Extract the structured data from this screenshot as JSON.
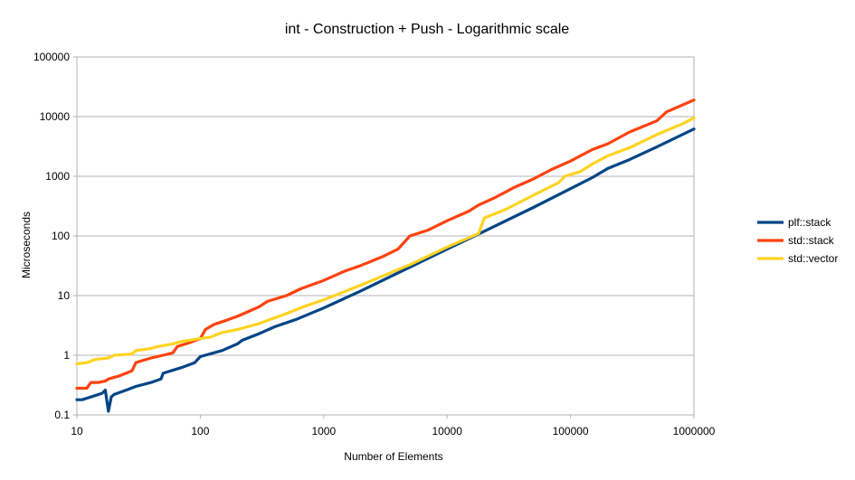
{
  "chart_data": {
    "type": "line",
    "title": "int - Construction + Push - Logarithmic scale",
    "xlabel": "Number of Elements",
    "ylabel": "Microseconds",
    "xscale": "log",
    "yscale": "log",
    "xlim": [
      10,
      1000000
    ],
    "ylim": [
      0.1,
      100000
    ],
    "x_ticks": [
      "10",
      "100",
      "1000",
      "10000",
      "100000",
      "1000000"
    ],
    "y_ticks": [
      "0.1",
      "1",
      "10",
      "100",
      "1000",
      "10000",
      "100000"
    ],
    "grid": "horizontal",
    "legend_position": "right",
    "series": [
      {
        "name": "plf::stack",
        "color": "#004586",
        "points": [
          [
            10,
            0.18
          ],
          [
            11,
            0.18
          ],
          [
            12,
            0.19
          ],
          [
            14,
            0.21
          ],
          [
            16,
            0.23
          ],
          [
            17,
            0.26
          ],
          [
            18,
            0.115
          ],
          [
            19,
            0.2
          ],
          [
            20,
            0.22
          ],
          [
            25,
            0.26
          ],
          [
            30,
            0.3
          ],
          [
            40,
            0.35
          ],
          [
            48,
            0.4
          ],
          [
            50,
            0.5
          ],
          [
            70,
            0.62
          ],
          [
            90,
            0.75
          ],
          [
            100,
            0.95
          ],
          [
            150,
            1.2
          ],
          [
            200,
            1.55
          ],
          [
            220,
            1.8
          ],
          [
            300,
            2.3
          ],
          [
            400,
            3.0
          ],
          [
            600,
            4.0
          ],
          [
            1000,
            6.2
          ],
          [
            2000,
            12
          ],
          [
            5000,
            30
          ],
          [
            10000,
            60
          ],
          [
            20000,
            120
          ],
          [
            50000,
            300
          ],
          [
            100000,
            620
          ],
          [
            150000,
            950
          ],
          [
            200000,
            1350
          ],
          [
            300000,
            1900
          ],
          [
            500000,
            3100
          ],
          [
            1000000,
            6200
          ]
        ]
      },
      {
        "name": "std::stack",
        "color": "#ff420e",
        "points": [
          [
            10,
            0.28
          ],
          [
            12,
            0.28
          ],
          [
            13,
            0.35
          ],
          [
            15,
            0.35
          ],
          [
            17,
            0.37
          ],
          [
            18,
            0.4
          ],
          [
            22,
            0.45
          ],
          [
            25,
            0.5
          ],
          [
            28,
            0.55
          ],
          [
            30,
            0.75
          ],
          [
            33,
            0.8
          ],
          [
            40,
            0.9
          ],
          [
            50,
            1.0
          ],
          [
            60,
            1.1
          ],
          [
            65,
            1.4
          ],
          [
            80,
            1.6
          ],
          [
            100,
            1.9
          ],
          [
            110,
            2.7
          ],
          [
            130,
            3.3
          ],
          [
            160,
            3.8
          ],
          [
            200,
            4.5
          ],
          [
            250,
            5.5
          ],
          [
            300,
            6.5
          ],
          [
            350,
            8.0
          ],
          [
            500,
            10
          ],
          [
            650,
            13
          ],
          [
            1000,
            18
          ],
          [
            1500,
            26
          ],
          [
            2000,
            32
          ],
          [
            3000,
            45
          ],
          [
            4000,
            60
          ],
          [
            5000,
            100
          ],
          [
            7000,
            125
          ],
          [
            10000,
            180
          ],
          [
            15000,
            260
          ],
          [
            18000,
            330
          ],
          [
            25000,
            450
          ],
          [
            35000,
            650
          ],
          [
            50000,
            900
          ],
          [
            70000,
            1300
          ],
          [
            100000,
            1800
          ],
          [
            150000,
            2800
          ],
          [
            200000,
            3500
          ],
          [
            300000,
            5500
          ],
          [
            500000,
            8500
          ],
          [
            600000,
            12000
          ],
          [
            1000000,
            19000
          ]
        ]
      },
      {
        "name": "std::vector",
        "color": "#ffd320",
        "points": [
          [
            10,
            0.72
          ],
          [
            12,
            0.75
          ],
          [
            14,
            0.85
          ],
          [
            18,
            0.9
          ],
          [
            20,
            1.0
          ],
          [
            28,
            1.05
          ],
          [
            30,
            1.2
          ],
          [
            40,
            1.3
          ],
          [
            45,
            1.4
          ],
          [
            60,
            1.55
          ],
          [
            70,
            1.7
          ],
          [
            100,
            1.9
          ],
          [
            120,
            2.0
          ],
          [
            150,
            2.4
          ],
          [
            200,
            2.7
          ],
          [
            300,
            3.4
          ],
          [
            500,
            5.0
          ],
          [
            700,
            6.6
          ],
          [
            1000,
            8.5
          ],
          [
            2000,
            15
          ],
          [
            5000,
            33
          ],
          [
            10000,
            65
          ],
          [
            18000,
            110
          ],
          [
            20000,
            200
          ],
          [
            30000,
            280
          ],
          [
            50000,
            480
          ],
          [
            80000,
            780
          ],
          [
            90000,
            1000
          ],
          [
            120000,
            1200
          ],
          [
            150000,
            1600
          ],
          [
            200000,
            2200
          ],
          [
            300000,
            3000
          ],
          [
            500000,
            5000
          ],
          [
            800000,
            7500
          ],
          [
            1000000,
            9500
          ]
        ]
      }
    ]
  }
}
